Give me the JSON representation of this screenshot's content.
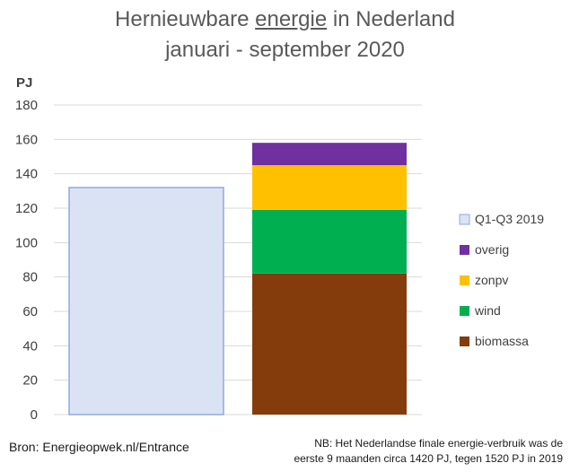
{
  "title": {
    "line1_pre": "Hernieuwbare ",
    "line1_underlined": "energie",
    "line1_post": " in Nederland",
    "line2": "januari - september 2020"
  },
  "source": "Bron: Energieopwek.nl/Entrance",
  "note": {
    "line1": "NB: Het Nederlandse finale energie-verbruik was de",
    "line2": "eerste 9 maanden circa 1420 PJ, tegen 1520 PJ in 2019"
  },
  "chart_data": {
    "type": "bar",
    "stacked": true,
    "ylabel": "PJ",
    "ylim": [
      0,
      180
    ],
    "yticks": [
      0,
      20,
      40,
      60,
      80,
      100,
      120,
      140,
      160,
      180
    ],
    "grid": true,
    "legend_position": "right",
    "bars": [
      {
        "segments": [
          {
            "series": "Q1-Q3 2019",
            "value": 132
          }
        ]
      },
      {
        "segments": [
          {
            "series": "biomassa",
            "value": 82
          },
          {
            "series": "wind",
            "value": 37
          },
          {
            "series": "zonpv",
            "value": 26
          },
          {
            "series": "overig",
            "value": 13
          }
        ]
      }
    ],
    "series": [
      {
        "name": "Q1-Q3 2019",
        "color": "#dae3f3",
        "border": "#8faadc"
      },
      {
        "name": "overig",
        "color": "#7030a0"
      },
      {
        "name": "zonpv",
        "color": "#ffc000"
      },
      {
        "name": "wind",
        "color": "#00b050"
      },
      {
        "name": "biomassa",
        "color": "#843c0c"
      }
    ]
  }
}
